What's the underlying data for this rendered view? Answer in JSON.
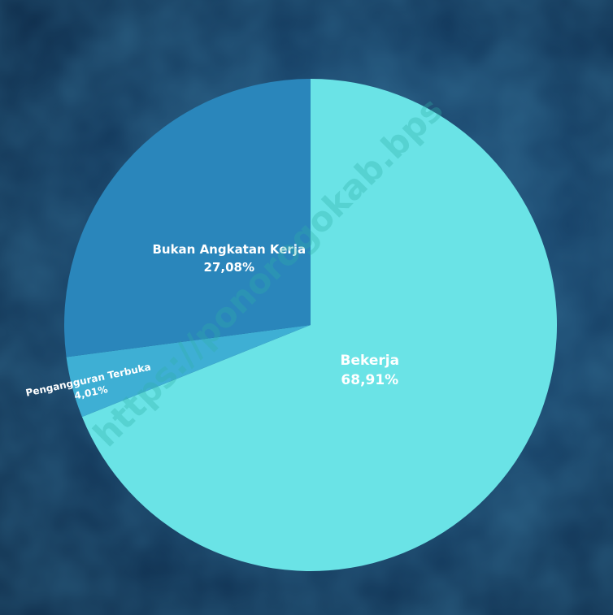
{
  "chart_data": {
    "type": "pie",
    "slices": [
      {
        "label": "Bekerja",
        "value_label": "68,91%",
        "value": 68.91,
        "color": "#6ae3e6"
      },
      {
        "label": "Pengangguran Terbuka",
        "value_label": "4,01%",
        "value": 4.01,
        "color": "#3eafd4"
      },
      {
        "label": "Bukan Angkatan Kerja",
        "value_label": "27,08%",
        "value": 27.08,
        "color": "#2a86bb"
      }
    ],
    "start_angle_deg": 0,
    "direction": "clockwise",
    "title": "",
    "legend": "none"
  },
  "watermark": {
    "text": "https://ponorogokab.bps"
  }
}
